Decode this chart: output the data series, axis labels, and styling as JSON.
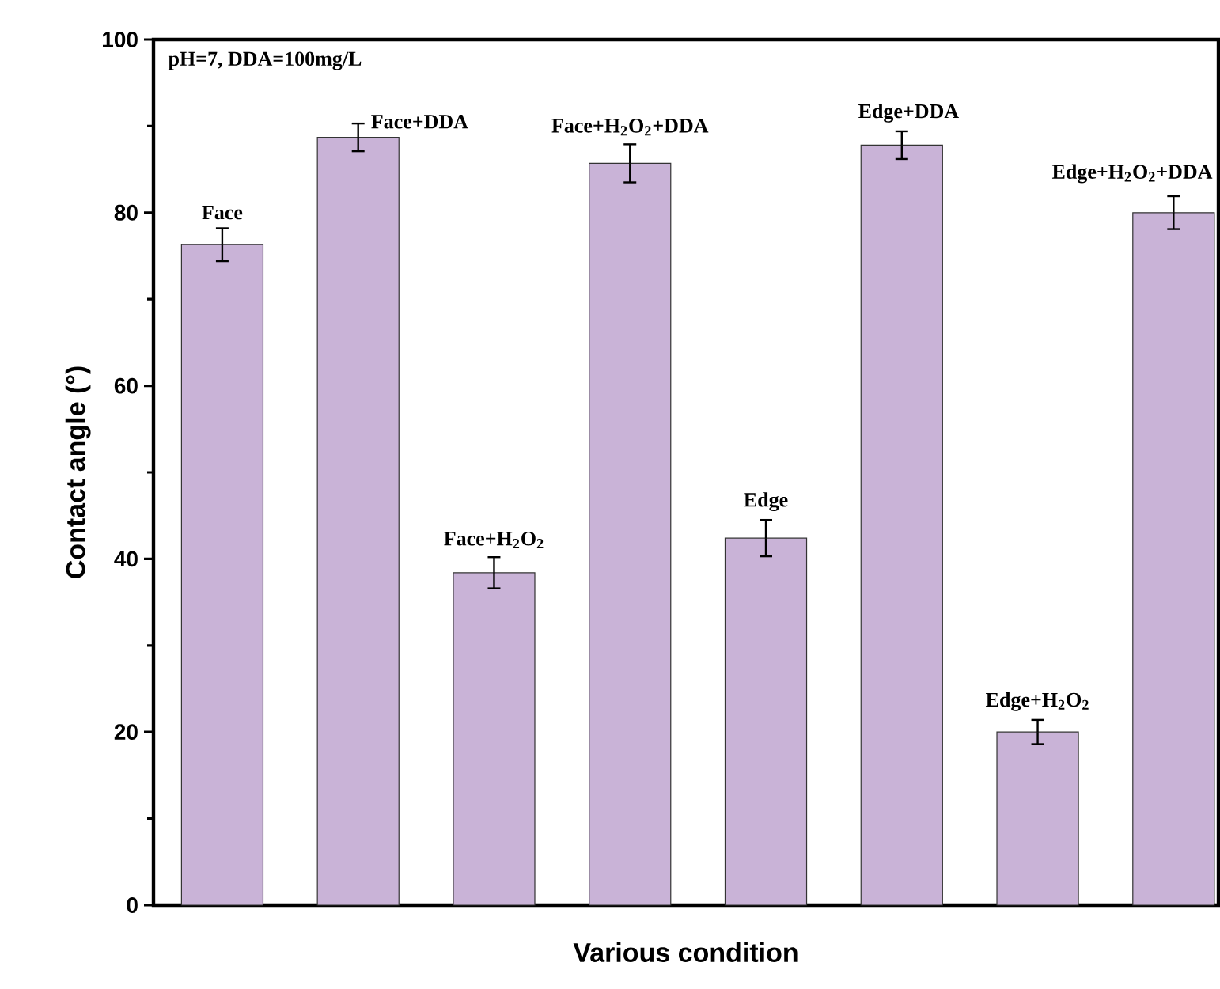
{
  "chart_data": {
    "type": "bar",
    "xlabel": "Various condition",
    "ylabel": "Contact angle (°)",
    "categories": [
      null,
      null,
      null,
      null,
      null,
      null,
      null,
      null
    ],
    "values": [
      76.3,
      88.7,
      38.4,
      85.7,
      42.4,
      87.8,
      20.0,
      80.0
    ],
    "errors": [
      1.9,
      1.6,
      1.8,
      2.2,
      2.1,
      1.6,
      1.4,
      1.9
    ],
    "color": "#c9b3d7",
    "ylim": [
      0,
      100
    ],
    "yticks": [
      0,
      20,
      40,
      60,
      80,
      100
    ],
    "annotations": [
      "pH=7, DDA=100mg/L",
      "Face",
      "Face+DDA",
      "Face+H$_{2}$O$_{2}$",
      "Face+H$_{2}$O$_{2}$+DDA",
      "Edge",
      "Edge+DDA",
      "Edge+H$_{2}$O$_{2}$",
      "Edge+H$_{2}$O$_{2}$+DDA"
    ],
    "grid": false
  }
}
